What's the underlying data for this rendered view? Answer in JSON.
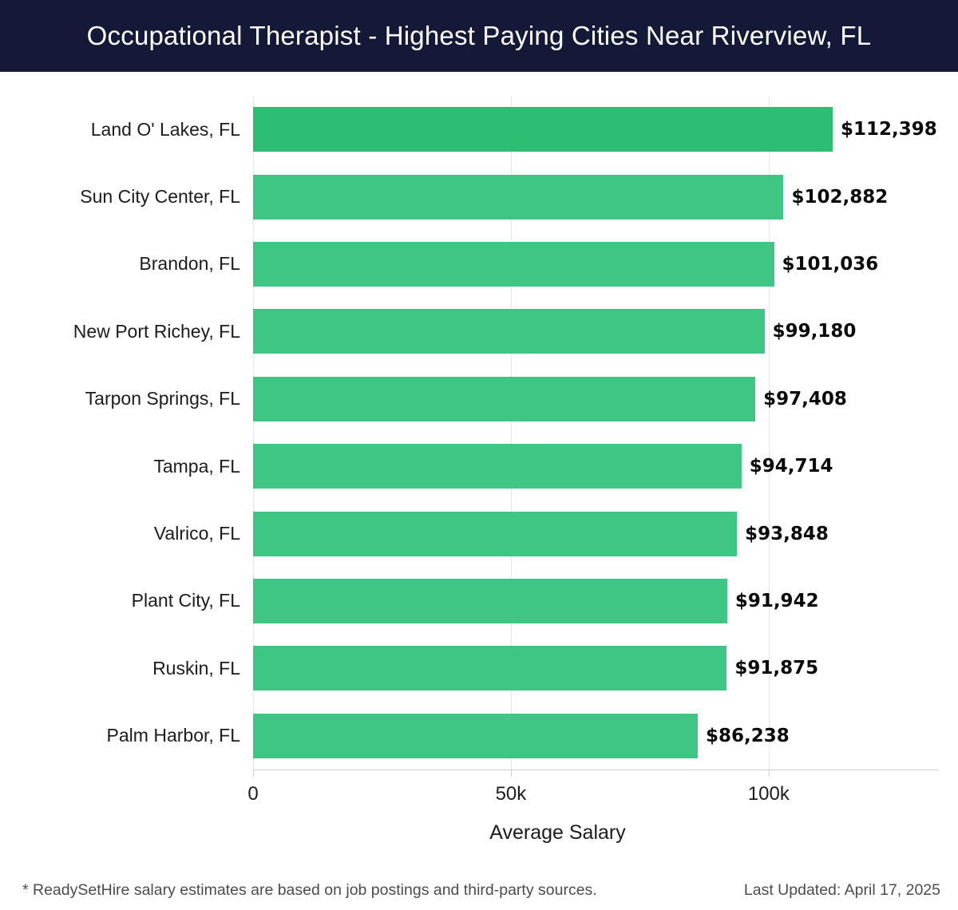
{
  "header": {
    "title": "Occupational Therapist - Highest Paying Cities Near Riverview, FL",
    "background_color": "#141937",
    "text_color": "#ffffff"
  },
  "chart_data": {
    "type": "bar",
    "orientation": "horizontal",
    "title": "Occupational Therapist - Highest Paying Cities Near Riverview, FL",
    "categories": [
      "Land O' Lakes, FL",
      "Sun City Center, FL",
      "Brandon, FL",
      "New Port Richey, FL",
      "Tarpon Springs, FL",
      "Tampa, FL",
      "Valrico, FL",
      "Plant City, FL",
      "Ruskin, FL",
      "Palm Harbor, FL"
    ],
    "values": [
      112398,
      102882,
      101036,
      99180,
      97408,
      94714,
      93848,
      91942,
      91875,
      86238
    ],
    "value_labels": [
      "$112,398",
      "$102,882",
      "$101,036",
      "$99,180",
      "$97,408",
      "$94,714",
      "$93,848",
      "$91,942",
      "$91,875",
      "$86,238"
    ],
    "xlabel": "Average Salary",
    "ylabel": "",
    "xlim": [
      0,
      133000
    ],
    "x_ticks": [
      {
        "label": "0",
        "value": 0
      },
      {
        "label": "50k",
        "value": 50000
      },
      {
        "label": "100k",
        "value": 100000
      }
    ],
    "grid": true,
    "gridline_color": "#e4e4e4",
    "bar_color": "#3fc685",
    "highlight_color": "#2dbe74",
    "highlight_index": 0,
    "legend": "none"
  },
  "footer": {
    "note": "* ReadySetHire salary estimates are based on job postings and third-party sources.",
    "last_updated": "Last Updated: April 17, 2025"
  }
}
